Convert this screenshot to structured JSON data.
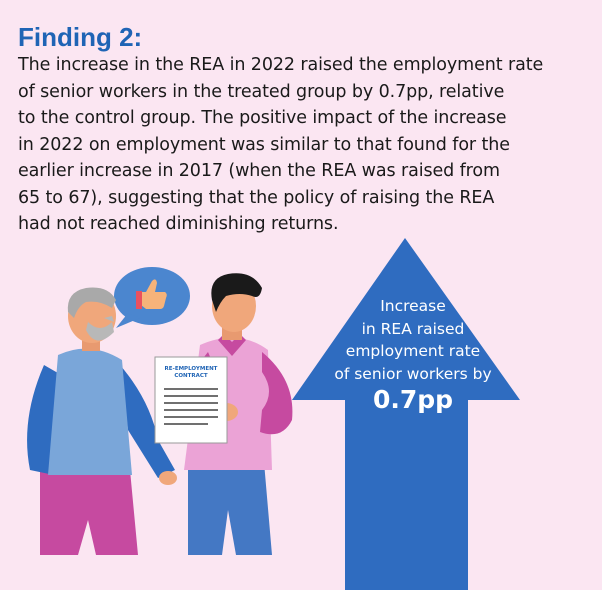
{
  "finding": {
    "title": "Finding 2:",
    "body_lines": [
      "The increase in the REA in 2022 raised the employment rate",
      "of senior workers in the treated group by 0.7pp, relative",
      "to the control group. The positive impact of the increase",
      "in 2022 on employment was similar to that found for the",
      "earlier increase in 2017 (when the REA was raised from",
      "65 to 67), suggesting that the policy of raising the REA",
      "had not reached diminishing returns."
    ]
  },
  "arrow": {
    "lines": [
      "Increase",
      "in REA raised",
      "employment rate",
      "of senior workers by"
    ],
    "value": "0.7pp",
    "color": "#2f6cc0"
  },
  "contract": {
    "line1": "RE-EMPLOYMENT",
    "line2": "CONTRACT"
  },
  "icons": {
    "speech_bubble": "thumbs-up-speech-bubble-icon"
  },
  "colors": {
    "background": "#fbe6f2",
    "title": "#1f64b5",
    "arrow": "#2f6cc0"
  }
}
